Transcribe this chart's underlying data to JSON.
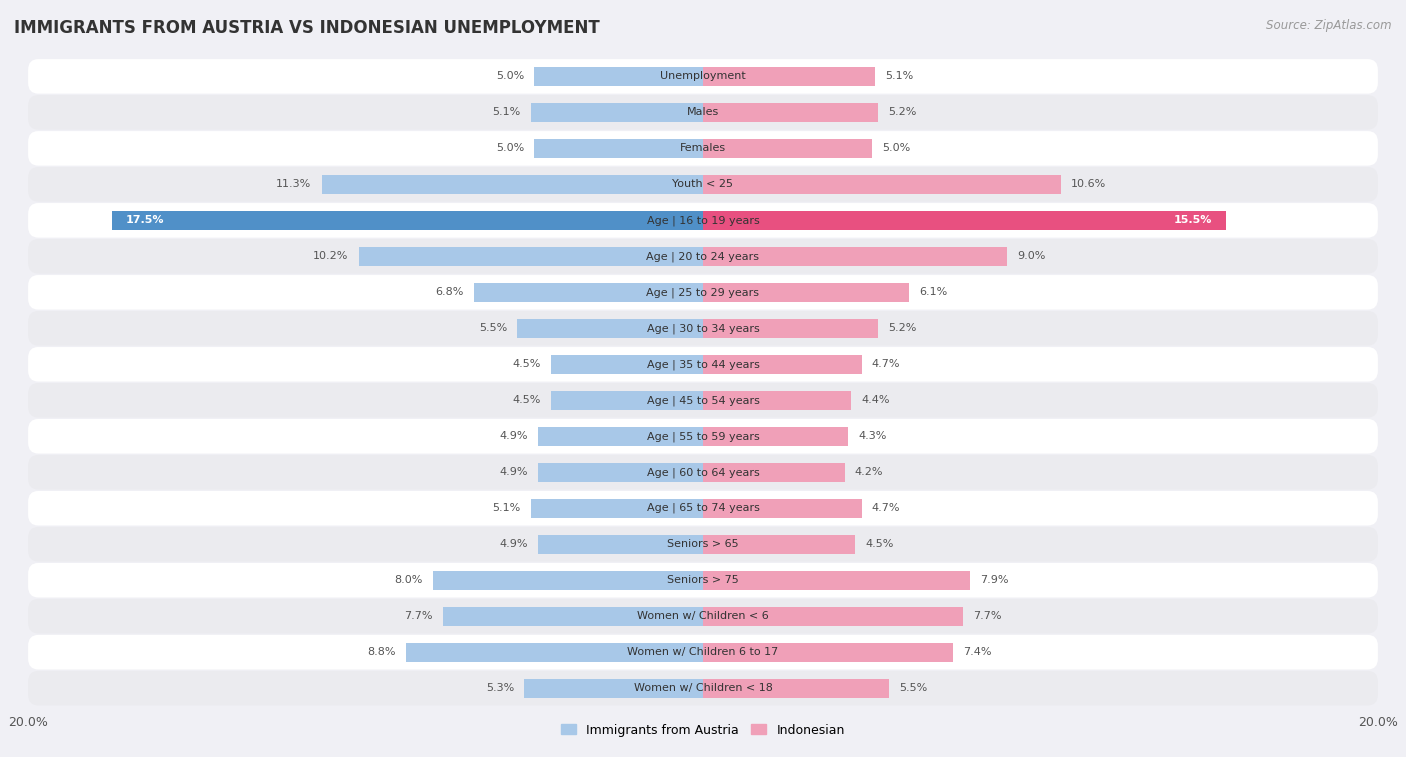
{
  "title": "IMMIGRANTS FROM AUSTRIA VS INDONESIAN UNEMPLOYMENT",
  "source": "Source: ZipAtlas.com",
  "categories": [
    "Unemployment",
    "Males",
    "Females",
    "Youth < 25",
    "Age | 16 to 19 years",
    "Age | 20 to 24 years",
    "Age | 25 to 29 years",
    "Age | 30 to 34 years",
    "Age | 35 to 44 years",
    "Age | 45 to 54 years",
    "Age | 55 to 59 years",
    "Age | 60 to 64 years",
    "Age | 65 to 74 years",
    "Seniors > 65",
    "Seniors > 75",
    "Women w/ Children < 6",
    "Women w/ Children 6 to 17",
    "Women w/ Children < 18"
  ],
  "austria_values": [
    5.0,
    5.1,
    5.0,
    11.3,
    17.5,
    10.2,
    6.8,
    5.5,
    4.5,
    4.5,
    4.9,
    4.9,
    5.1,
    4.9,
    8.0,
    7.7,
    8.8,
    5.3
  ],
  "indonesian_values": [
    5.1,
    5.2,
    5.0,
    10.6,
    15.5,
    9.0,
    6.1,
    5.2,
    4.7,
    4.4,
    4.3,
    4.2,
    4.7,
    4.5,
    7.9,
    7.7,
    7.4,
    5.5
  ],
  "austria_color": "#a8c8e8",
  "indonesian_color": "#f0a0b8",
  "austria_highlight_color": "#5090c8",
  "indonesian_highlight_color": "#e85080",
  "highlight_index": 4,
  "row_color_odd": "#f5f5f5",
  "row_color_even": "#e8e8ec",
  "xlim": 20.0,
  "bar_height": 0.52,
  "legend_austria": "Immigrants from Austria",
  "legend_indonesian": "Indonesian",
  "title_fontsize": 12,
  "source_fontsize": 8.5,
  "label_fontsize": 8,
  "category_fontsize": 8
}
